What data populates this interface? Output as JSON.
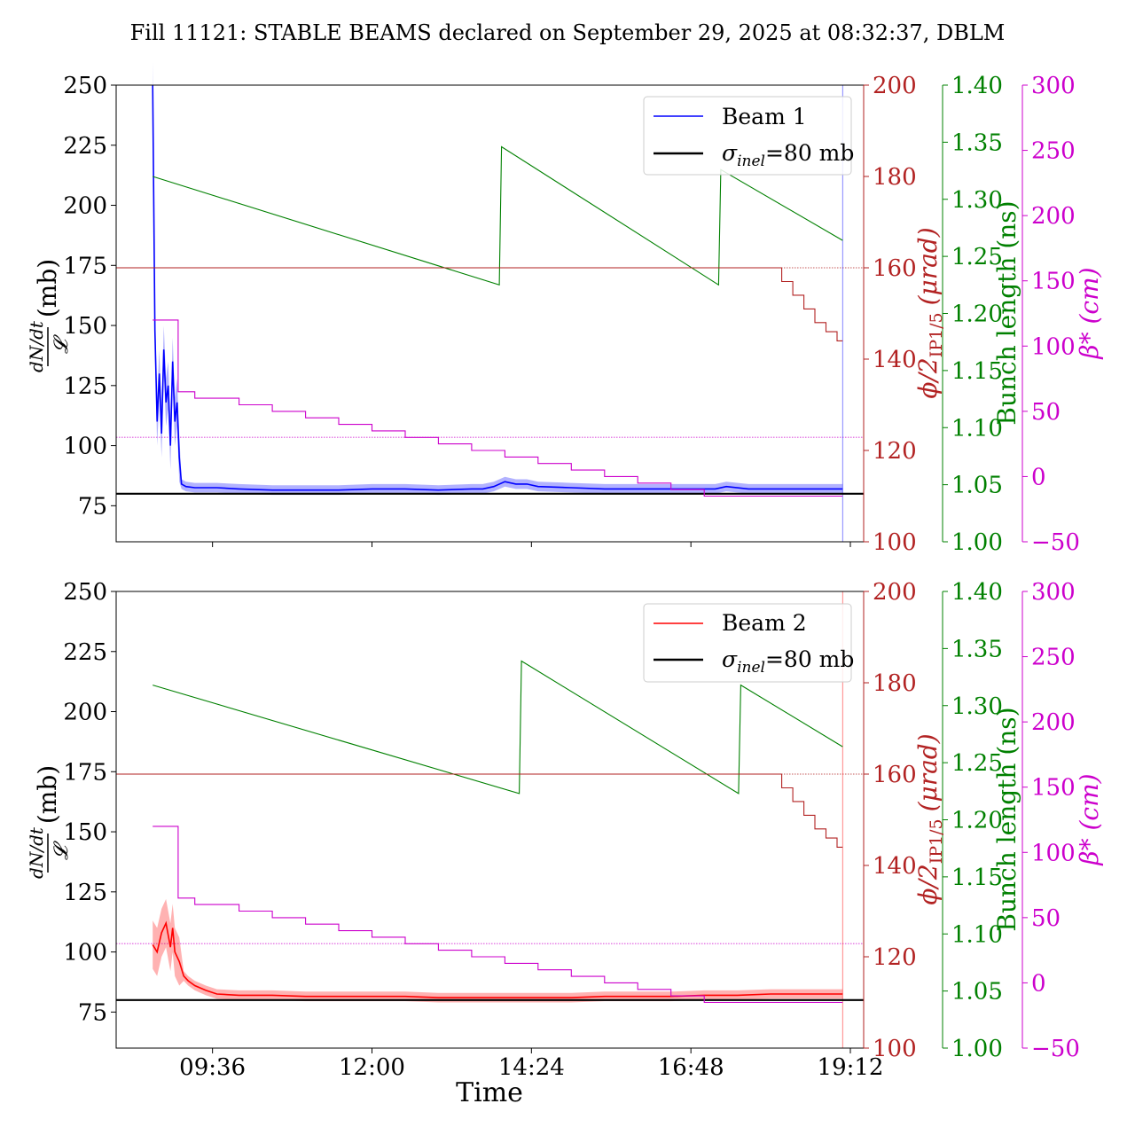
{
  "title": "Fill 11121: STABLE BEAMS declared on September 29, 2025 at 08:32:37, DBLM",
  "xlabel": "Time",
  "x_ticks": [
    "09:36",
    "12:00",
    "14:24",
    "16:48",
    "19:12"
  ],
  "colors": {
    "beam1": "#0000ff",
    "beam2": "#ff0000",
    "sigma": "#000000",
    "phi": "#b22222",
    "bunch": "#008000",
    "beta": "#cc00cc"
  },
  "axes": {
    "left_label_frac_num": "dN/dt",
    "left_label_frac_den": "𝓛",
    "left_label_unit": "(mb)",
    "left_ticks": [
      "75",
      "100",
      "125",
      "150",
      "175",
      "200",
      "225",
      "250"
    ],
    "phi_label": "ϕ/2",
    "phi_label_sub": "IP1/5",
    "phi_label_unit": "(μrad)",
    "phi_ticks": [
      "100",
      "120",
      "140",
      "160",
      "180",
      "200"
    ],
    "bunch_label": "Bunch length (ns)",
    "bunch_ticks": [
      "1.00",
      "1.05",
      "1.10",
      "1.15",
      "1.20",
      "1.25",
      "1.30",
      "1.35",
      "1.40"
    ],
    "beta_label": "β* (cm)",
    "beta_ticks": [
      "−50",
      "0",
      "50",
      "100",
      "150",
      "200",
      "250",
      "300"
    ]
  },
  "panels": [
    {
      "legend_beam": "Beam 1",
      "legend_sigma_symbol": "σ",
      "legend_sigma_sub": "inel",
      "legend_sigma_value": "=80 mb"
    },
    {
      "legend_beam": "Beam 2",
      "legend_sigma_symbol": "σ",
      "legend_sigma_sub": "inel",
      "legend_sigma_value": "=80 mb"
    }
  ],
  "chart_data": [
    {
      "type": "line",
      "panel": "top",
      "x_unit": "time (HH:MM), Sep 29 2025",
      "xlim": [
        "08:09",
        "19:24"
      ],
      "ylim": [
        60,
        250
      ],
      "phi_lim": [
        100,
        200
      ],
      "bunch_lim": [
        1.0,
        1.4
      ],
      "beta_lim": [
        -50,
        300
      ],
      "series": [
        {
          "name": "Beam 1",
          "axis": "left",
          "color": "#0000ff",
          "x": [
            "08:42",
            "08:44",
            "08:46",
            "08:48",
            "08:50",
            "08:52",
            "08:54",
            "08:56",
            "08:58",
            "09:00",
            "09:02",
            "09:04",
            "09:06",
            "09:08",
            "09:12",
            "09:20",
            "09:40",
            "10:00",
            "10:30",
            "11:00",
            "11:30",
            "12:00",
            "12:30",
            "13:00",
            "13:30",
            "13:40",
            "13:50",
            "14:00",
            "14:10",
            "14:20",
            "14:30",
            "15:00",
            "15:30",
            "16:00",
            "16:30",
            "17:00",
            "17:10",
            "17:20",
            "17:40",
            "18:00",
            "18:30",
            "19:00",
            "19:05"
          ],
          "y": [
            250,
            148,
            110,
            130,
            105,
            140,
            118,
            125,
            100,
            135,
            110,
            118,
            95,
            84,
            83,
            82.5,
            82.5,
            82,
            81.5,
            81.5,
            81.5,
            82,
            82,
            81.5,
            82,
            82,
            83,
            85,
            84,
            84,
            83,
            82.5,
            82,
            82,
            82,
            82,
            82,
            83,
            82,
            82,
            82,
            82,
            82
          ]
        },
        {
          "name": "",
          "axis": "left",
          "color": "#000000",
          "x": [
            "08:09",
            "19:24"
          ],
          "y": [
            80,
            80
          ]
        },
        {
          "name": "",
          "axis": "bunch",
          "color": "#008000",
          "x": [
            "08:42",
            "13:55",
            "13:57",
            "17:13",
            "17:15",
            "19:05"
          ],
          "y": [
            1.32,
            1.225,
            1.346,
            1.225,
            1.326,
            1.264
          ]
        },
        {
          "name": "",
          "axis": "phi",
          "color": "#b22222",
          "x": [
            "08:09",
            "18:00",
            "18:10",
            "18:20",
            "18:30",
            "18:40",
            "18:50",
            "19:00",
            "19:05"
          ],
          "y": [
            160,
            160,
            157,
            154,
            151,
            148,
            146,
            144,
            144
          ]
        },
        {
          "name": "",
          "axis": "beta",
          "color": "#cc00cc",
          "x": [
            "08:42",
            "09:04",
            "09:05",
            "09:20",
            "10:00",
            "10:30",
            "11:00",
            "11:30",
            "12:00",
            "12:30",
            "13:00",
            "13:30",
            "14:00",
            "14:30",
            "15:00",
            "15:30",
            "16:00",
            "16:30",
            "17:00",
            "19:05"
          ],
          "y": [
            120,
            120,
            65,
            60,
            55,
            50,
            45,
            40,
            35,
            30,
            25,
            20,
            15,
            10,
            5,
            0,
            -5,
            -10,
            -15,
            -15
          ]
        }
      ],
      "reference_lines": {
        "left": [
          103.5
        ],
        "phi": [
          160
        ]
      }
    },
    {
      "type": "line",
      "panel": "bottom",
      "x_unit": "time (HH:MM), Sep 29 2025",
      "xlim": [
        "08:09",
        "19:24"
      ],
      "ylim": [
        60,
        250
      ],
      "phi_lim": [
        100,
        200
      ],
      "bunch_lim": [
        1.0,
        1.4
      ],
      "beta_lim": [
        -50,
        300
      ],
      "series": [
        {
          "name": "Beam 2",
          "axis": "left",
          "color": "#ff0000",
          "x": [
            "08:42",
            "08:46",
            "08:50",
            "08:54",
            "08:58",
            "09:00",
            "09:02",
            "09:06",
            "09:10",
            "09:14",
            "09:20",
            "09:30",
            "09:40",
            "10:00",
            "10:30",
            "11:00",
            "11:30",
            "12:00",
            "12:30",
            "13:00",
            "13:30",
            "14:00",
            "14:30",
            "15:00",
            "15:30",
            "16:00",
            "16:30",
            "17:00",
            "17:30",
            "18:00",
            "18:30",
            "19:00",
            "19:05"
          ],
          "y": [
            103,
            100,
            108,
            112,
            102,
            110,
            100,
            96,
            90,
            88,
            86,
            84,
            82.5,
            82,
            82,
            81.5,
            81.5,
            81.5,
            81.5,
            81,
            81,
            81,
            81,
            81,
            81.5,
            81.5,
            81.5,
            82,
            82,
            82.5,
            82.5,
            82.5,
            82.5
          ]
        },
        {
          "name": "",
          "axis": "left",
          "color": "#000000",
          "x": [
            "08:09",
            "19:24"
          ],
          "y": [
            80,
            80
          ]
        },
        {
          "name": "",
          "axis": "bunch",
          "color": "#008000",
          "x": [
            "08:42",
            "14:13",
            "14:15",
            "17:31",
            "17:33",
            "19:05"
          ],
          "y": [
            1.318,
            1.223,
            1.339,
            1.223,
            1.318,
            1.264
          ]
        },
        {
          "name": "",
          "axis": "phi",
          "color": "#b22222",
          "x": [
            "08:09",
            "18:00",
            "18:10",
            "18:20",
            "18:30",
            "18:40",
            "18:50",
            "19:00",
            "19:05"
          ],
          "y": [
            160,
            160,
            157,
            154,
            151,
            148,
            146,
            144,
            144
          ]
        },
        {
          "name": "",
          "axis": "beta",
          "color": "#cc00cc",
          "x": [
            "08:42",
            "09:04",
            "09:05",
            "09:20",
            "10:00",
            "10:30",
            "11:00",
            "11:30",
            "12:00",
            "12:30",
            "13:00",
            "13:30",
            "14:00",
            "14:30",
            "15:00",
            "15:30",
            "16:00",
            "16:30",
            "17:00",
            "19:05"
          ],
          "y": [
            120,
            120,
            65,
            60,
            55,
            50,
            45,
            40,
            35,
            30,
            25,
            20,
            15,
            10,
            5,
            0,
            -5,
            -10,
            -15,
            -15
          ]
        }
      ],
      "reference_lines": {
        "left": [
          103.5
        ],
        "phi": [
          160
        ]
      }
    }
  ]
}
